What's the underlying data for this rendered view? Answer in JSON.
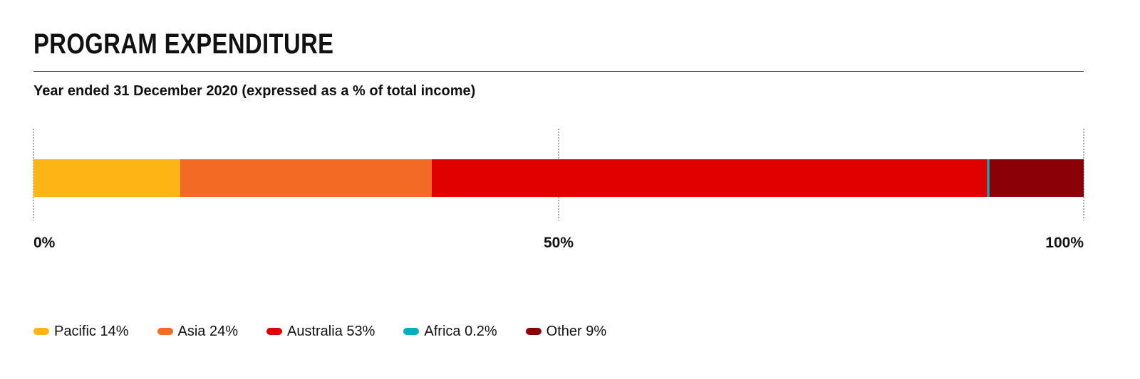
{
  "header": {
    "title": "PROGRAM EXPENDITURE",
    "subtitle": "Year ended 31 December 2020 (expressed as a % of total income)"
  },
  "chart_data": {
    "type": "bar",
    "orientation": "horizontal-stacked",
    "xlim": [
      0,
      100
    ],
    "ticks": [
      {
        "value": 0,
        "label": "0%"
      },
      {
        "value": 50,
        "label": "50%"
      },
      {
        "value": 100,
        "label": "100%"
      }
    ],
    "grid": true,
    "legend_position": "bottom-left",
    "series": [
      {
        "name": "Pacific",
        "value": 14,
        "legend_label": "Pacific 14%",
        "color": "#FDB515"
      },
      {
        "name": "Asia",
        "value": 24,
        "legend_label": "Asia 24%",
        "color": "#F26A24"
      },
      {
        "name": "Australia",
        "value": 53,
        "legend_label": "Australia 53%",
        "color": "#E10000"
      },
      {
        "name": "Africa",
        "value": 0.2,
        "legend_label": "Africa 0.2%",
        "color": "#00AEBF"
      },
      {
        "name": "Other",
        "value": 9,
        "legend_label": "Other 9%",
        "color": "#8B0007"
      }
    ]
  }
}
